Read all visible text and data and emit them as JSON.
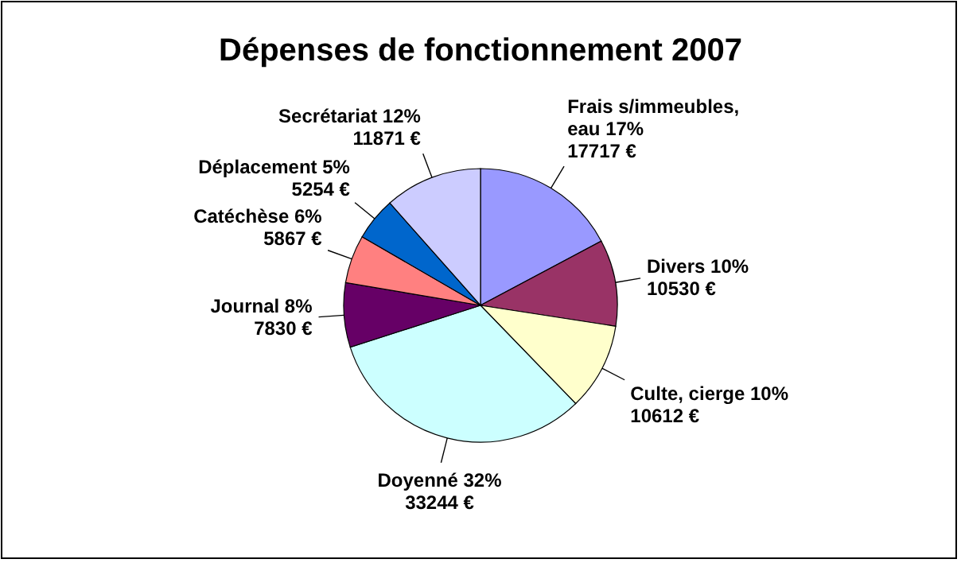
{
  "chart_data": {
    "type": "pie",
    "title": "Dépenses de fonctionnement 2007",
    "categories": [
      "Frais s/immeubles, eau",
      "Divers",
      "Culte, cierge",
      "Doyenné",
      "Journal",
      "Catéchèse",
      "Déplacement",
      "Secrétariat"
    ],
    "values": [
      17717,
      10530,
      10612,
      33244,
      7830,
      5867,
      5254,
      11871
    ],
    "value_labels": [
      "17%\n17717 €",
      "10%\n10530 €",
      "10%\n10612 €",
      "32%\n33244 €",
      "8%\n7830 €",
      "6%\n5867 €",
      "5%\n5254 €",
      "12%\n11871 €"
    ],
    "colors": [
      "#9999ff",
      "#993366",
      "#ffffcc",
      "#ccffff",
      "#660066",
      "#ff8080",
      "#0066cc",
      "#ccccff"
    ]
  }
}
